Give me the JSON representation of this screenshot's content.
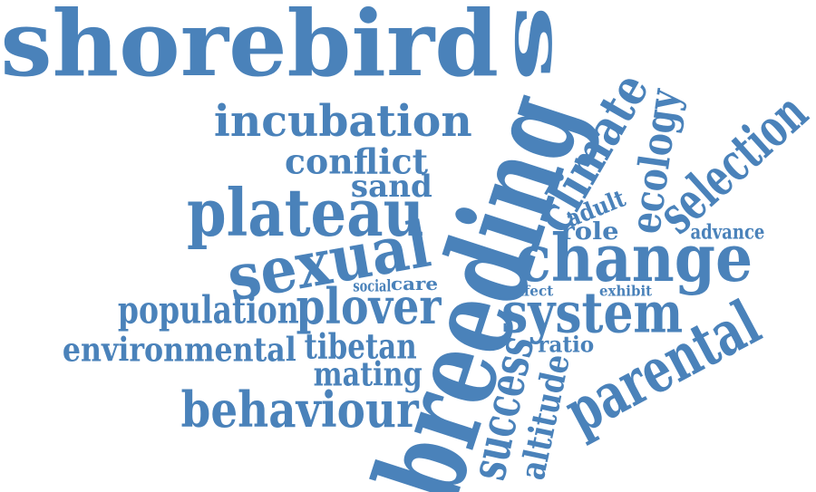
{
  "style": {
    "word_color": "#4a82ba",
    "background": "#ffffff"
  },
  "words": [
    {
      "key": "shorebird",
      "text": "shorebird"
    },
    {
      "key": "s_rot",
      "text": "s"
    },
    {
      "key": "breeding",
      "text": "breeding"
    },
    {
      "key": "incubation",
      "text": "incubation"
    },
    {
      "key": "conflict",
      "text": "conflict"
    },
    {
      "key": "sand",
      "text": "sand"
    },
    {
      "key": "plateau",
      "text": "plateau"
    },
    {
      "key": "sexual",
      "text": "sexual"
    },
    {
      "key": "climate",
      "text": "climate"
    },
    {
      "key": "ecology",
      "text": "ecology"
    },
    {
      "key": "selection",
      "text": "selection"
    },
    {
      "key": "adult",
      "text": "adult"
    },
    {
      "key": "role",
      "text": "role"
    },
    {
      "key": "advance",
      "text": "advance"
    },
    {
      "key": "change",
      "text": "change"
    },
    {
      "key": "social",
      "text": "social"
    },
    {
      "key": "care",
      "text": "care"
    },
    {
      "key": "effect",
      "text": "effect"
    },
    {
      "key": "exhibit",
      "text": "exhibit"
    },
    {
      "key": "population",
      "text": "population"
    },
    {
      "key": "plover",
      "text": "plover"
    },
    {
      "key": "system",
      "text": "system"
    },
    {
      "key": "parental",
      "text": "parental"
    },
    {
      "key": "environmental",
      "text": "environmental"
    },
    {
      "key": "tibetan",
      "text": "tibetan"
    },
    {
      "key": "ratio",
      "text": "ratio"
    },
    {
      "key": "mating",
      "text": "mating"
    },
    {
      "key": "success",
      "text": "success"
    },
    {
      "key": "altitude",
      "text": "altitude"
    },
    {
      "key": "behaviour",
      "text": "behaviour"
    }
  ]
}
